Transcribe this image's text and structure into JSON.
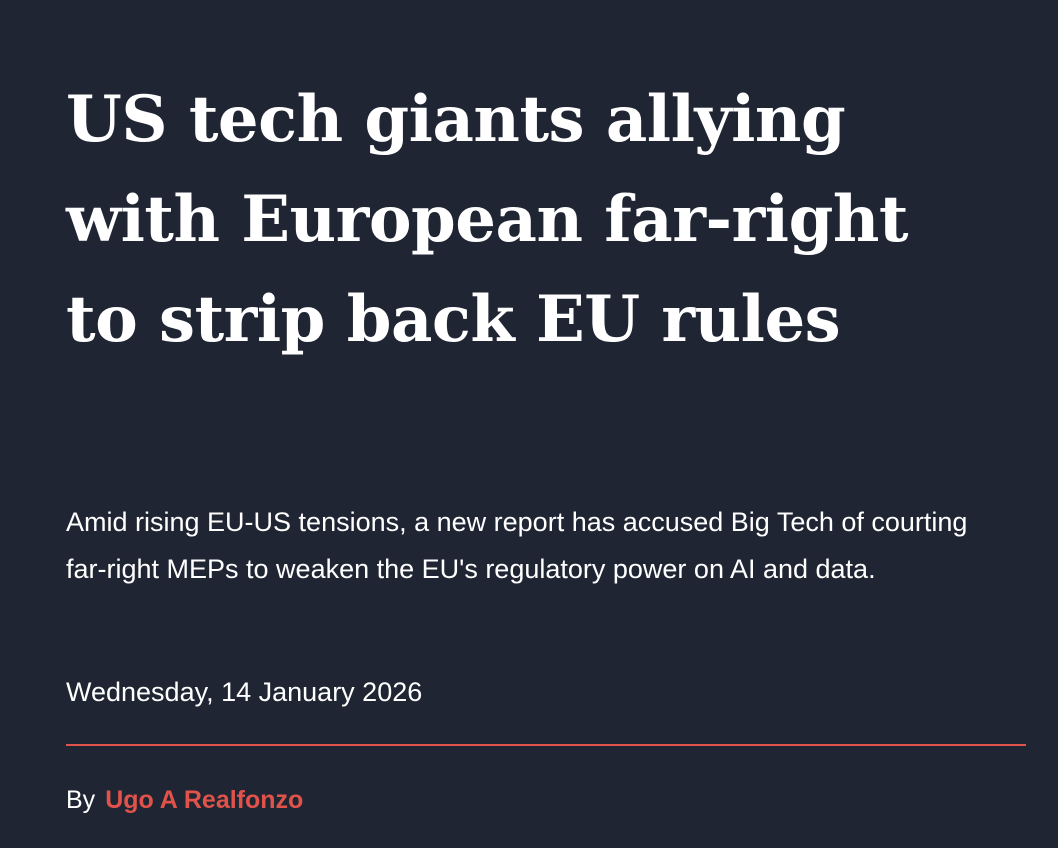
{
  "article": {
    "headline": "US tech giants allying with European far-right to strip back EU rules",
    "standfirst": "Amid rising EU-US tensions, a new report has accused Big Tech of courting far-right MEPs to weaken the EU's regulatory power on AI and data.",
    "date": "Wednesday, 14 January 2026",
    "byline": {
      "prefix": "By",
      "author": "Ugo A Realfonzo"
    }
  }
}
